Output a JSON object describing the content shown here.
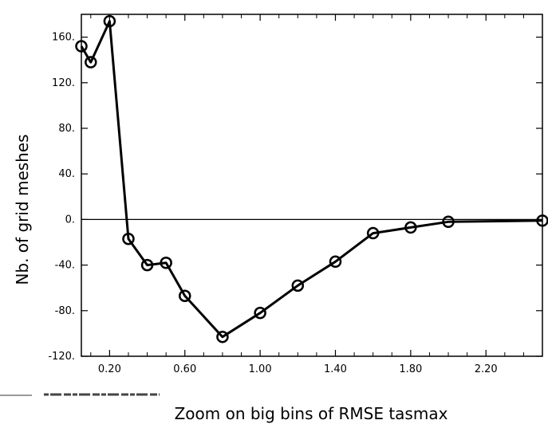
{
  "chart_data": {
    "type": "line",
    "title": "",
    "xlabel": "Zoom on big bins of RMSE tasmax",
    "ylabel": "Nb. of grid meshes",
    "xlim": [
      0.05,
      2.5
    ],
    "ylim": [
      -120,
      180
    ],
    "x_ticks": [
      0.2,
      0.6,
      1.0,
      1.4,
      1.8,
      2.2
    ],
    "x_tick_labels": [
      "0.20",
      "0.60",
      "1.00",
      "1.40",
      "1.80",
      "2.20"
    ],
    "y_ticks": [
      160,
      120,
      80,
      40,
      0,
      -40,
      -80,
      -120
    ],
    "y_tick_labels": [
      "160.",
      "120.",
      "80.",
      "40.",
      "0.",
      "-40.",
      "-80.",
      "-120."
    ],
    "reference_line": 0,
    "grid": false,
    "marker": "circle",
    "colors": {
      "line": "#000000",
      "axes": "#000000"
    },
    "series": [
      {
        "x": [
          0.05,
          0.1,
          0.2,
          0.3,
          0.4,
          0.5,
          0.6,
          0.8,
          1.0,
          1.2,
          1.4,
          1.6,
          1.8,
          2.0,
          2.5
        ],
        "y": [
          152,
          138,
          174,
          -17,
          -40,
          -38,
          -67,
          -103,
          -82,
          -58,
          -37,
          -12,
          -7,
          -2,
          -1
        ]
      }
    ]
  }
}
